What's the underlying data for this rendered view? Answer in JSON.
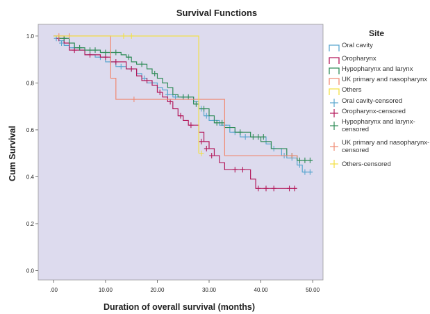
{
  "chart_data": {
    "type": "line",
    "title": "Survival Functions",
    "xlabel": "Duration of overall survival (months)",
    "ylabel": "Cum Survival",
    "xlim": [
      -3,
      52
    ],
    "ylim": [
      -0.04,
      1.05
    ],
    "xticks": [
      0,
      10,
      20,
      30,
      40,
      50
    ],
    "xtick_labels": [
      ".00",
      "10.00",
      "20.00",
      "30.00",
      "40.00",
      "50.00"
    ],
    "yticks": [
      0,
      0.2,
      0.4,
      0.6,
      0.8,
      1.0
    ],
    "ytick_labels": [
      "0.0",
      "0.2",
      "0.4",
      "0.6",
      "0.8",
      "1.0"
    ],
    "grid": false,
    "legend": {
      "title": "Site",
      "position": "right",
      "entries": [
        {
          "label": "Oral cavity",
          "kind": "step",
          "color": "#5aa6cf"
        },
        {
          "label": "Oropharynx",
          "kind": "step",
          "color": "#b3185a"
        },
        {
          "label": "Hypopharynx and larynx",
          "kind": "step",
          "color": "#2e8b57"
        },
        {
          "label": "UK primary and nasopharynx",
          "kind": "step",
          "color": "#f08a73"
        },
        {
          "label": "Others",
          "kind": "step",
          "color": "#f2e043"
        },
        {
          "label": "Oral cavity-censored",
          "kind": "cross",
          "color": "#5aa6cf"
        },
        {
          "label": "Oropharynx-censored",
          "kind": "cross",
          "color": "#b3185a"
        },
        {
          "label": "Hypopharynx and larynx-censored",
          "kind": "cross",
          "color": "#2e8b57"
        },
        {
          "label": "UK primary and nasopharynx-censored",
          "kind": "cross",
          "color": "#f08a73"
        },
        {
          "label": "Others-censored",
          "kind": "cross",
          "color": "#f2e043"
        }
      ]
    },
    "series": [
      {
        "name": "Oral cavity",
        "color": "#5aa6cf",
        "steps": [
          [
            0,
            1.0
          ],
          [
            1,
            0.98
          ],
          [
            2,
            0.96
          ],
          [
            3,
            0.95
          ],
          [
            5,
            0.94
          ],
          [
            6,
            0.92
          ],
          [
            8,
            0.91
          ],
          [
            10,
            0.89
          ],
          [
            12,
            0.87
          ],
          [
            14,
            0.86
          ],
          [
            16,
            0.84
          ],
          [
            17,
            0.82
          ],
          [
            18,
            0.8
          ],
          [
            20,
            0.78
          ],
          [
            21,
            0.77
          ],
          [
            22,
            0.75
          ],
          [
            23,
            0.74
          ],
          [
            27,
            0.72
          ],
          [
            28,
            0.69
          ],
          [
            29,
            0.66
          ],
          [
            30,
            0.64
          ],
          [
            32,
            0.62
          ],
          [
            34,
            0.59
          ],
          [
            36,
            0.57
          ],
          [
            41,
            0.54
          ],
          [
            42,
            0.52
          ],
          [
            44,
            0.49
          ],
          [
            45,
            0.48
          ],
          [
            47,
            0.45
          ],
          [
            48,
            0.42
          ],
          [
            50,
            0.42
          ]
        ],
        "censored": [
          [
            0.5,
            0.99
          ],
          [
            1.5,
            0.97
          ],
          [
            4,
            0.95
          ],
          [
            9,
            0.91
          ],
          [
            11,
            0.89
          ],
          [
            13,
            0.87
          ],
          [
            15,
            0.86
          ],
          [
            17.5,
            0.82
          ],
          [
            19,
            0.8
          ],
          [
            22,
            0.75
          ],
          [
            23.5,
            0.74
          ],
          [
            25,
            0.74
          ],
          [
            28.5,
            0.69
          ],
          [
            29.5,
            0.66
          ],
          [
            31,
            0.64
          ],
          [
            33,
            0.62
          ],
          [
            35,
            0.59
          ],
          [
            37,
            0.57
          ],
          [
            42.5,
            0.52
          ],
          [
            44.5,
            0.49
          ],
          [
            46,
            0.48
          ],
          [
            47.5,
            0.45
          ],
          [
            48.5,
            0.42
          ],
          [
            49.5,
            0.42
          ]
        ]
      },
      {
        "name": "Oropharynx",
        "color": "#b3185a",
        "steps": [
          [
            0,
            1.0
          ],
          [
            2,
            0.97
          ],
          [
            3,
            0.94
          ],
          [
            6,
            0.92
          ],
          [
            9,
            0.91
          ],
          [
            11,
            0.89
          ],
          [
            14,
            0.86
          ],
          [
            16,
            0.83
          ],
          [
            17,
            0.81
          ],
          [
            19,
            0.79
          ],
          [
            20,
            0.76
          ],
          [
            21,
            0.74
          ],
          [
            22,
            0.72
          ],
          [
            23,
            0.69
          ],
          [
            24,
            0.66
          ],
          [
            25,
            0.64
          ],
          [
            26,
            0.62
          ],
          [
            28,
            0.59
          ],
          [
            29,
            0.55
          ],
          [
            30,
            0.52
          ],
          [
            31,
            0.49
          ],
          [
            32,
            0.46
          ],
          [
            33,
            0.43
          ],
          [
            38,
            0.39
          ],
          [
            39,
            0.35
          ],
          [
            47,
            0.35
          ]
        ],
        "censored": [
          [
            1,
            0.99
          ],
          [
            4,
            0.94
          ],
          [
            7,
            0.92
          ],
          [
            10,
            0.91
          ],
          [
            12,
            0.89
          ],
          [
            15,
            0.86
          ],
          [
            18,
            0.81
          ],
          [
            20.5,
            0.76
          ],
          [
            22.5,
            0.72
          ],
          [
            24.5,
            0.66
          ],
          [
            26.5,
            0.62
          ],
          [
            28.5,
            0.55
          ],
          [
            29.5,
            0.52
          ],
          [
            30.5,
            0.49
          ],
          [
            35,
            0.43
          ],
          [
            36.5,
            0.43
          ],
          [
            39.5,
            0.35
          ],
          [
            41,
            0.35
          ],
          [
            42.5,
            0.35
          ],
          [
            45.5,
            0.35
          ],
          [
            46.5,
            0.35
          ]
        ]
      },
      {
        "name": "Hypopharynx and larynx",
        "color": "#2e8b57",
        "steps": [
          [
            0,
            1.0
          ],
          [
            1,
            0.99
          ],
          [
            3,
            0.97
          ],
          [
            4,
            0.95
          ],
          [
            6,
            0.94
          ],
          [
            9,
            0.93
          ],
          [
            13,
            0.92
          ],
          [
            14,
            0.91
          ],
          [
            15,
            0.89
          ],
          [
            16,
            0.88
          ],
          [
            18,
            0.86
          ],
          [
            19,
            0.84
          ],
          [
            20,
            0.82
          ],
          [
            21,
            0.8
          ],
          [
            22,
            0.78
          ],
          [
            23,
            0.75
          ],
          [
            24,
            0.74
          ],
          [
            27,
            0.71
          ],
          [
            28,
            0.69
          ],
          [
            30,
            0.66
          ],
          [
            31,
            0.63
          ],
          [
            33,
            0.61
          ],
          [
            35,
            0.59
          ],
          [
            38,
            0.57
          ],
          [
            40,
            0.55
          ],
          [
            42,
            0.52
          ],
          [
            45,
            0.49
          ],
          [
            47,
            0.47
          ],
          [
            50,
            0.47
          ]
        ],
        "censored": [
          [
            2,
            0.99
          ],
          [
            5,
            0.95
          ],
          [
            7,
            0.94
          ],
          [
            8,
            0.94
          ],
          [
            10,
            0.93
          ],
          [
            11,
            0.93
          ],
          [
            12,
            0.93
          ],
          [
            14.5,
            0.91
          ],
          [
            17,
            0.88
          ],
          [
            19.5,
            0.84
          ],
          [
            25,
            0.74
          ],
          [
            26,
            0.74
          ],
          [
            27.5,
            0.71
          ],
          [
            29,
            0.69
          ],
          [
            31.5,
            0.63
          ],
          [
            32.5,
            0.63
          ],
          [
            36,
            0.59
          ],
          [
            38.5,
            0.57
          ],
          [
            39.5,
            0.57
          ],
          [
            40.5,
            0.57
          ],
          [
            46,
            0.49
          ],
          [
            47.5,
            0.47
          ],
          [
            48.5,
            0.47
          ],
          [
            49.5,
            0.47
          ]
        ]
      },
      {
        "name": "UK primary and nasopharynx",
        "color": "#f08a73",
        "steps": [
          [
            0,
            1.0
          ],
          [
            11,
            0.82
          ],
          [
            12,
            0.73
          ],
          [
            33,
            0.49
          ],
          [
            47,
            0.48
          ]
        ],
        "censored": [
          [
            1,
            1.0
          ],
          [
            3,
            1.0
          ],
          [
            15.5,
            0.73
          ],
          [
            46,
            0.49
          ]
        ]
      },
      {
        "name": "Others",
        "color": "#f2e043",
        "steps": [
          [
            0,
            1.0
          ],
          [
            28,
            0.5
          ]
        ],
        "censored": [
          [
            13.5,
            1.0
          ],
          [
            15,
            1.0
          ],
          [
            28.5,
            0.5
          ]
        ]
      }
    ]
  }
}
